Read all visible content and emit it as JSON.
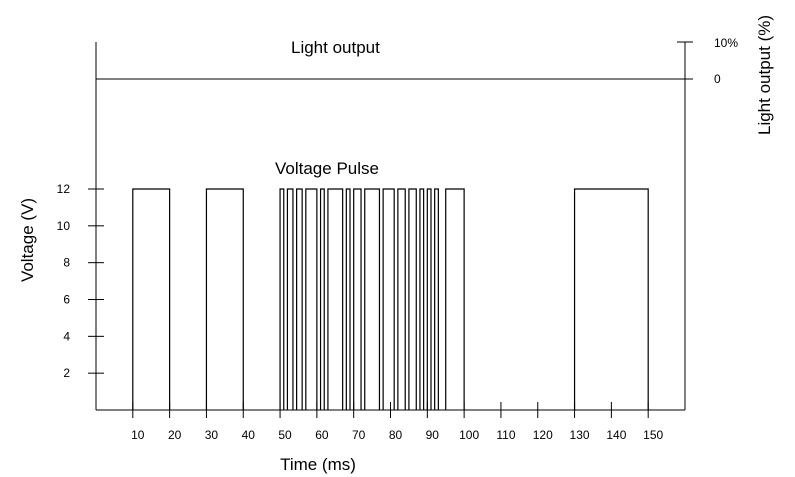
{
  "chart_data": [
    {
      "type": "line",
      "title": "Voltage Pulse",
      "xlabel": "Time (ms)",
      "ylabel": "Voltage (V)",
      "xlim": [
        0,
        160
      ],
      "ylim": [
        0,
        12
      ],
      "x_ticks": [
        10,
        20,
        30,
        40,
        50,
        60,
        70,
        80,
        90,
        100,
        110,
        120,
        130,
        140,
        150
      ],
      "y_ticks": [
        2,
        4,
        6,
        8,
        10,
        12
      ],
      "pulse_high": 12,
      "pulses": [
        [
          10,
          20
        ],
        [
          30,
          40
        ],
        [
          50,
          51
        ],
        [
          52,
          53.5
        ],
        [
          54.5,
          56
        ],
        [
          57,
          60
        ],
        [
          61,
          62
        ],
        [
          63,
          67
        ],
        [
          68,
          69
        ],
        [
          70,
          72
        ],
        [
          73,
          77
        ],
        [
          78,
          81
        ],
        [
          82,
          84
        ],
        [
          85,
          87
        ],
        [
          88,
          89
        ],
        [
          90,
          91
        ],
        [
          92,
          93
        ],
        [
          95,
          100
        ],
        [
          130,
          150
        ]
      ],
      "grid": false
    },
    {
      "type": "line",
      "title": "Light output",
      "ylabel": "Light output (%)",
      "y_ticks": [
        "10%",
        "0"
      ],
      "x": [
        0,
        160
      ],
      "values": [
        0,
        0
      ]
    }
  ]
}
